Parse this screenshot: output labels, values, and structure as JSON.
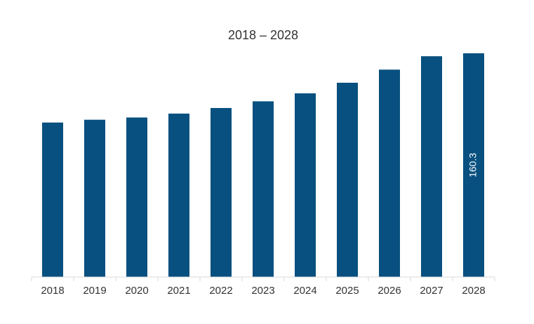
{
  "chart_data": {
    "type": "bar",
    "title": "2018 – 2028",
    "xlabel": "",
    "ylabel": "",
    "categories": [
      "2018",
      "2019",
      "2020",
      "2021",
      "2022",
      "2023",
      "2024",
      "2025",
      "2026",
      "2027",
      "2028"
    ],
    "values": [
      110.7,
      112.7,
      114.3,
      117.1,
      121.1,
      125.9,
      131.6,
      139.2,
      148.6,
      158.2,
      160.3
    ],
    "ylim": [
      0,
      160.3
    ],
    "data_labels": [
      {
        "category": "2028",
        "text": "160.3"
      }
    ],
    "grid": false,
    "legend": "none",
    "colors": {
      "bar": "#08507f",
      "axis": "#d9d9d9",
      "text": "#333333",
      "label_text": "#ffffff"
    }
  }
}
